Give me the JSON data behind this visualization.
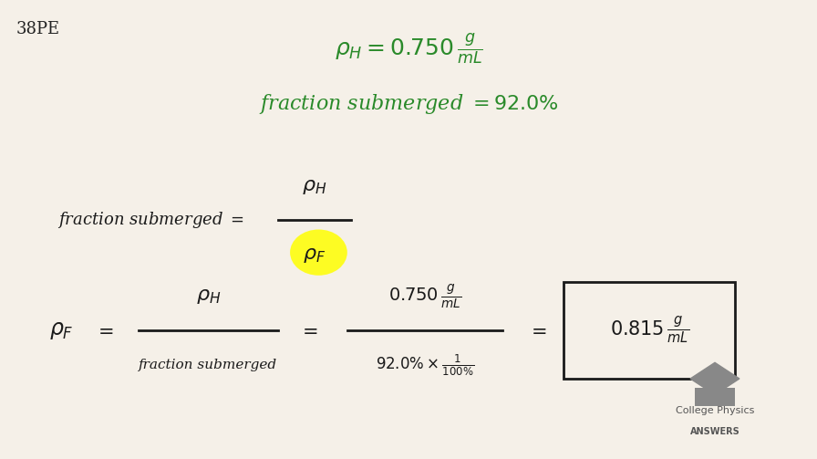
{
  "background_color": "#f5f0e8",
  "label_38pe": "38PE",
  "label_38pe_color": "#222222",
  "label_38pe_fontsize": 13,
  "green_color": "#2a8a2a",
  "black_color": "#1a1a1a",
  "highlight_yellow": "#ffff00",
  "logo_text1": "College Physics",
  "logo_text2": "ANSWERS",
  "fig_width": 8.96,
  "fig_height": 5.03
}
